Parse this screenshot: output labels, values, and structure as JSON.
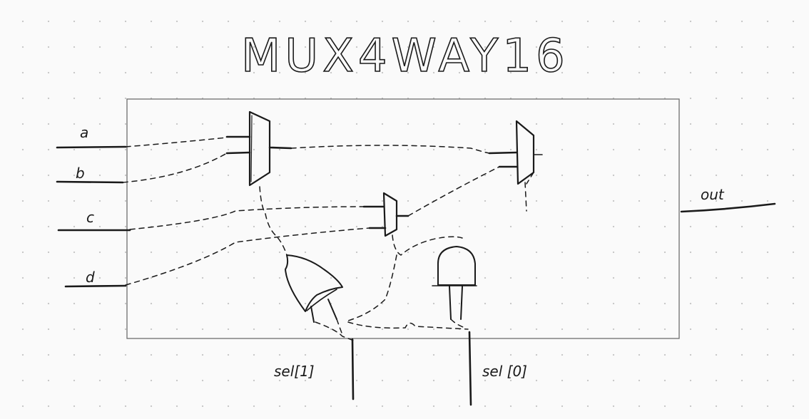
{
  "diagram": {
    "title": "MUX4WAY16",
    "inputs": [
      {
        "id": "a",
        "label": "a"
      },
      {
        "id": "b",
        "label": "b"
      },
      {
        "id": "c",
        "label": "c"
      },
      {
        "id": "d",
        "label": "d"
      }
    ],
    "output": {
      "id": "out",
      "label": "out"
    },
    "selects": [
      {
        "id": "sel1",
        "label": "sel[1]"
      },
      {
        "id": "sel0",
        "label": "sel [0]"
      }
    ],
    "components": [
      {
        "id": "mux-ab",
        "kind": "multiplexer"
      },
      {
        "id": "mux-cd",
        "kind": "multiplexer"
      },
      {
        "id": "mux-final",
        "kind": "multiplexer"
      },
      {
        "id": "or-gate",
        "kind": "or-gate"
      },
      {
        "id": "and-gate",
        "kind": "and-gate"
      }
    ]
  }
}
